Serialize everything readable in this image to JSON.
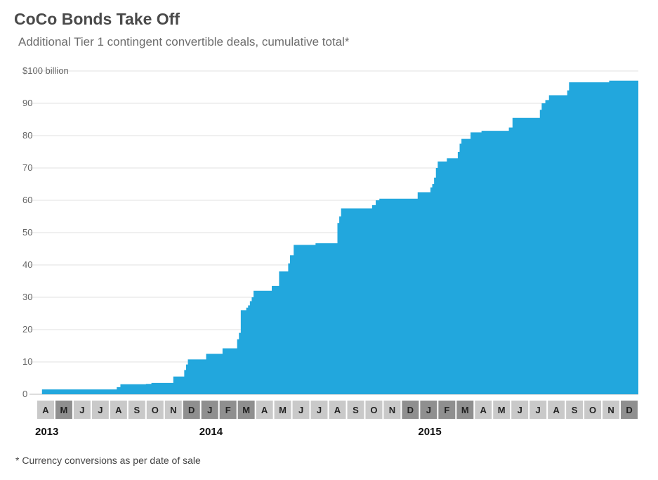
{
  "header": {
    "title": "CoCo Bonds Take Off",
    "subtitle": "Additional Tier 1 contingent convertible deals, cumulative total*"
  },
  "footnote": "* Currency conversions as per date of sale",
  "colors": {
    "area": "#22a7dd",
    "grid": "#e2e2e2",
    "month_light": "#c9c9c9",
    "month_dark": "#8f8f8f"
  },
  "chart_data": {
    "type": "area",
    "title": "CoCo Bonds Take Off",
    "subtitle": "Additional Tier 1 contingent convertible deals, cumulative total*",
    "ylabel": "",
    "xlabel": "",
    "y_unit_label": "$100 billion",
    "ylim": [
      0,
      100
    ],
    "yticks": [
      0,
      10,
      20,
      30,
      40,
      50,
      60,
      70,
      80,
      90,
      100
    ],
    "grid": true,
    "legend": "none",
    "xlim": [
      0,
      33
    ],
    "x_unit": "months since April 2013 (0 = start of April 2013)",
    "month_labels": [
      "A",
      "M",
      "J",
      "J",
      "A",
      "S",
      "O",
      "N",
      "D",
      "J",
      "F",
      "M",
      "A",
      "M",
      "J",
      "J",
      "A",
      "S",
      "O",
      "N",
      "D",
      "J",
      "F",
      "M",
      "A",
      "M",
      "J",
      "J",
      "A",
      "S",
      "O",
      "N",
      "D"
    ],
    "year_labels": [
      {
        "label": "2013",
        "month_index": 0
      },
      {
        "label": "2014",
        "month_index": 9
      },
      {
        "label": "2015",
        "month_index": 21
      }
    ],
    "steps": [
      {
        "x": 0.3,
        "y": 1.5
      },
      {
        "x": 4.4,
        "y": 2.2
      },
      {
        "x": 4.6,
        "y": 3.1
      },
      {
        "x": 6.0,
        "y": 3.2
      },
      {
        "x": 6.3,
        "y": 3.5
      },
      {
        "x": 7.5,
        "y": 5.5
      },
      {
        "x": 8.1,
        "y": 7.5
      },
      {
        "x": 8.2,
        "y": 9.2
      },
      {
        "x": 8.3,
        "y": 10.8
      },
      {
        "x": 9.3,
        "y": 12.5
      },
      {
        "x": 10.2,
        "y": 14.2
      },
      {
        "x": 11.0,
        "y": 17.0
      },
      {
        "x": 11.1,
        "y": 19.0
      },
      {
        "x": 11.2,
        "y": 26.0
      },
      {
        "x": 11.5,
        "y": 26.8
      },
      {
        "x": 11.6,
        "y": 27.5
      },
      {
        "x": 11.7,
        "y": 28.8
      },
      {
        "x": 11.8,
        "y": 30.0
      },
      {
        "x": 11.9,
        "y": 32.0
      },
      {
        "x": 12.9,
        "y": 33.5
      },
      {
        "x": 13.3,
        "y": 38.0
      },
      {
        "x": 13.8,
        "y": 40.5
      },
      {
        "x": 13.9,
        "y": 43.0
      },
      {
        "x": 14.1,
        "y": 46.2
      },
      {
        "x": 15.3,
        "y": 46.7
      },
      {
        "x": 16.5,
        "y": 53.0
      },
      {
        "x": 16.6,
        "y": 55.0
      },
      {
        "x": 16.7,
        "y": 57.5
      },
      {
        "x": 18.4,
        "y": 58.5
      },
      {
        "x": 18.6,
        "y": 60.0
      },
      {
        "x": 18.8,
        "y": 60.5
      },
      {
        "x": 20.9,
        "y": 62.5
      },
      {
        "x": 21.6,
        "y": 64.0
      },
      {
        "x": 21.7,
        "y": 65.0
      },
      {
        "x": 21.8,
        "y": 67.0
      },
      {
        "x": 21.9,
        "y": 70.0
      },
      {
        "x": 22.0,
        "y": 72.0
      },
      {
        "x": 22.5,
        "y": 73.0
      },
      {
        "x": 23.1,
        "y": 75.0
      },
      {
        "x": 23.2,
        "y": 77.5
      },
      {
        "x": 23.3,
        "y": 79.0
      },
      {
        "x": 23.8,
        "y": 81.0
      },
      {
        "x": 24.4,
        "y": 81.5
      },
      {
        "x": 25.9,
        "y": 82.5
      },
      {
        "x": 26.1,
        "y": 85.5
      },
      {
        "x": 27.6,
        "y": 88.0
      },
      {
        "x": 27.7,
        "y": 90.0
      },
      {
        "x": 27.9,
        "y": 91.0
      },
      {
        "x": 28.1,
        "y": 92.5
      },
      {
        "x": 29.1,
        "y": 94.0
      },
      {
        "x": 29.2,
        "y": 96.5
      },
      {
        "x": 31.4,
        "y": 97.0
      },
      {
        "x": 32.6,
        "y": 97.0
      }
    ]
  }
}
